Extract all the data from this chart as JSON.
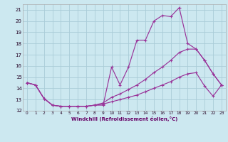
{
  "xlabel": "Windchill (Refroidissement éolien,°C)",
  "bg_color": "#cce8f0",
  "grid_color": "#aaccd8",
  "line_color": "#993399",
  "xlim": [
    -0.5,
    23.5
  ],
  "ylim": [
    12,
    21.5
  ],
  "yticks": [
    12,
    13,
    14,
    15,
    16,
    17,
    18,
    19,
    20,
    21
  ],
  "xticks": [
    0,
    1,
    2,
    3,
    4,
    5,
    6,
    7,
    8,
    9,
    10,
    11,
    12,
    13,
    14,
    15,
    16,
    17,
    18,
    19,
    20,
    21,
    22,
    23
  ],
  "line1_x": [
    0,
    1,
    2,
    3,
    4,
    5,
    6,
    7,
    8,
    9,
    10,
    11,
    12,
    13,
    14,
    15,
    16,
    17,
    18,
    19,
    20,
    21,
    22,
    23
  ],
  "line1_y": [
    14.5,
    14.3,
    13.1,
    12.5,
    12.4,
    12.4,
    12.4,
    12.4,
    12.5,
    12.5,
    15.9,
    14.3,
    15.9,
    18.3,
    18.3,
    20.0,
    20.5,
    20.4,
    21.2,
    18.0,
    17.5,
    16.5,
    15.3,
    14.3
  ],
  "line2_x": [
    0,
    1,
    2,
    3,
    4,
    5,
    6,
    7,
    8,
    9,
    10,
    11,
    12,
    13,
    14,
    15,
    16,
    17,
    18,
    19,
    20,
    21,
    22,
    23
  ],
  "line2_y": [
    14.5,
    14.3,
    13.1,
    12.5,
    12.4,
    12.4,
    12.4,
    12.4,
    12.5,
    12.7,
    13.2,
    13.5,
    13.9,
    14.3,
    14.8,
    15.4,
    15.9,
    16.5,
    17.2,
    17.5,
    17.5,
    16.5,
    15.3,
    14.3
  ],
  "line3_x": [
    0,
    1,
    2,
    3,
    4,
    5,
    6,
    7,
    8,
    9,
    10,
    11,
    12,
    13,
    14,
    15,
    16,
    17,
    18,
    19,
    20,
    21,
    22,
    23
  ],
  "line3_y": [
    14.5,
    14.3,
    13.1,
    12.5,
    12.4,
    12.4,
    12.4,
    12.4,
    12.5,
    12.6,
    12.8,
    13.0,
    13.2,
    13.4,
    13.7,
    14.0,
    14.3,
    14.6,
    15.0,
    15.3,
    15.4,
    14.2,
    13.3,
    14.3
  ]
}
